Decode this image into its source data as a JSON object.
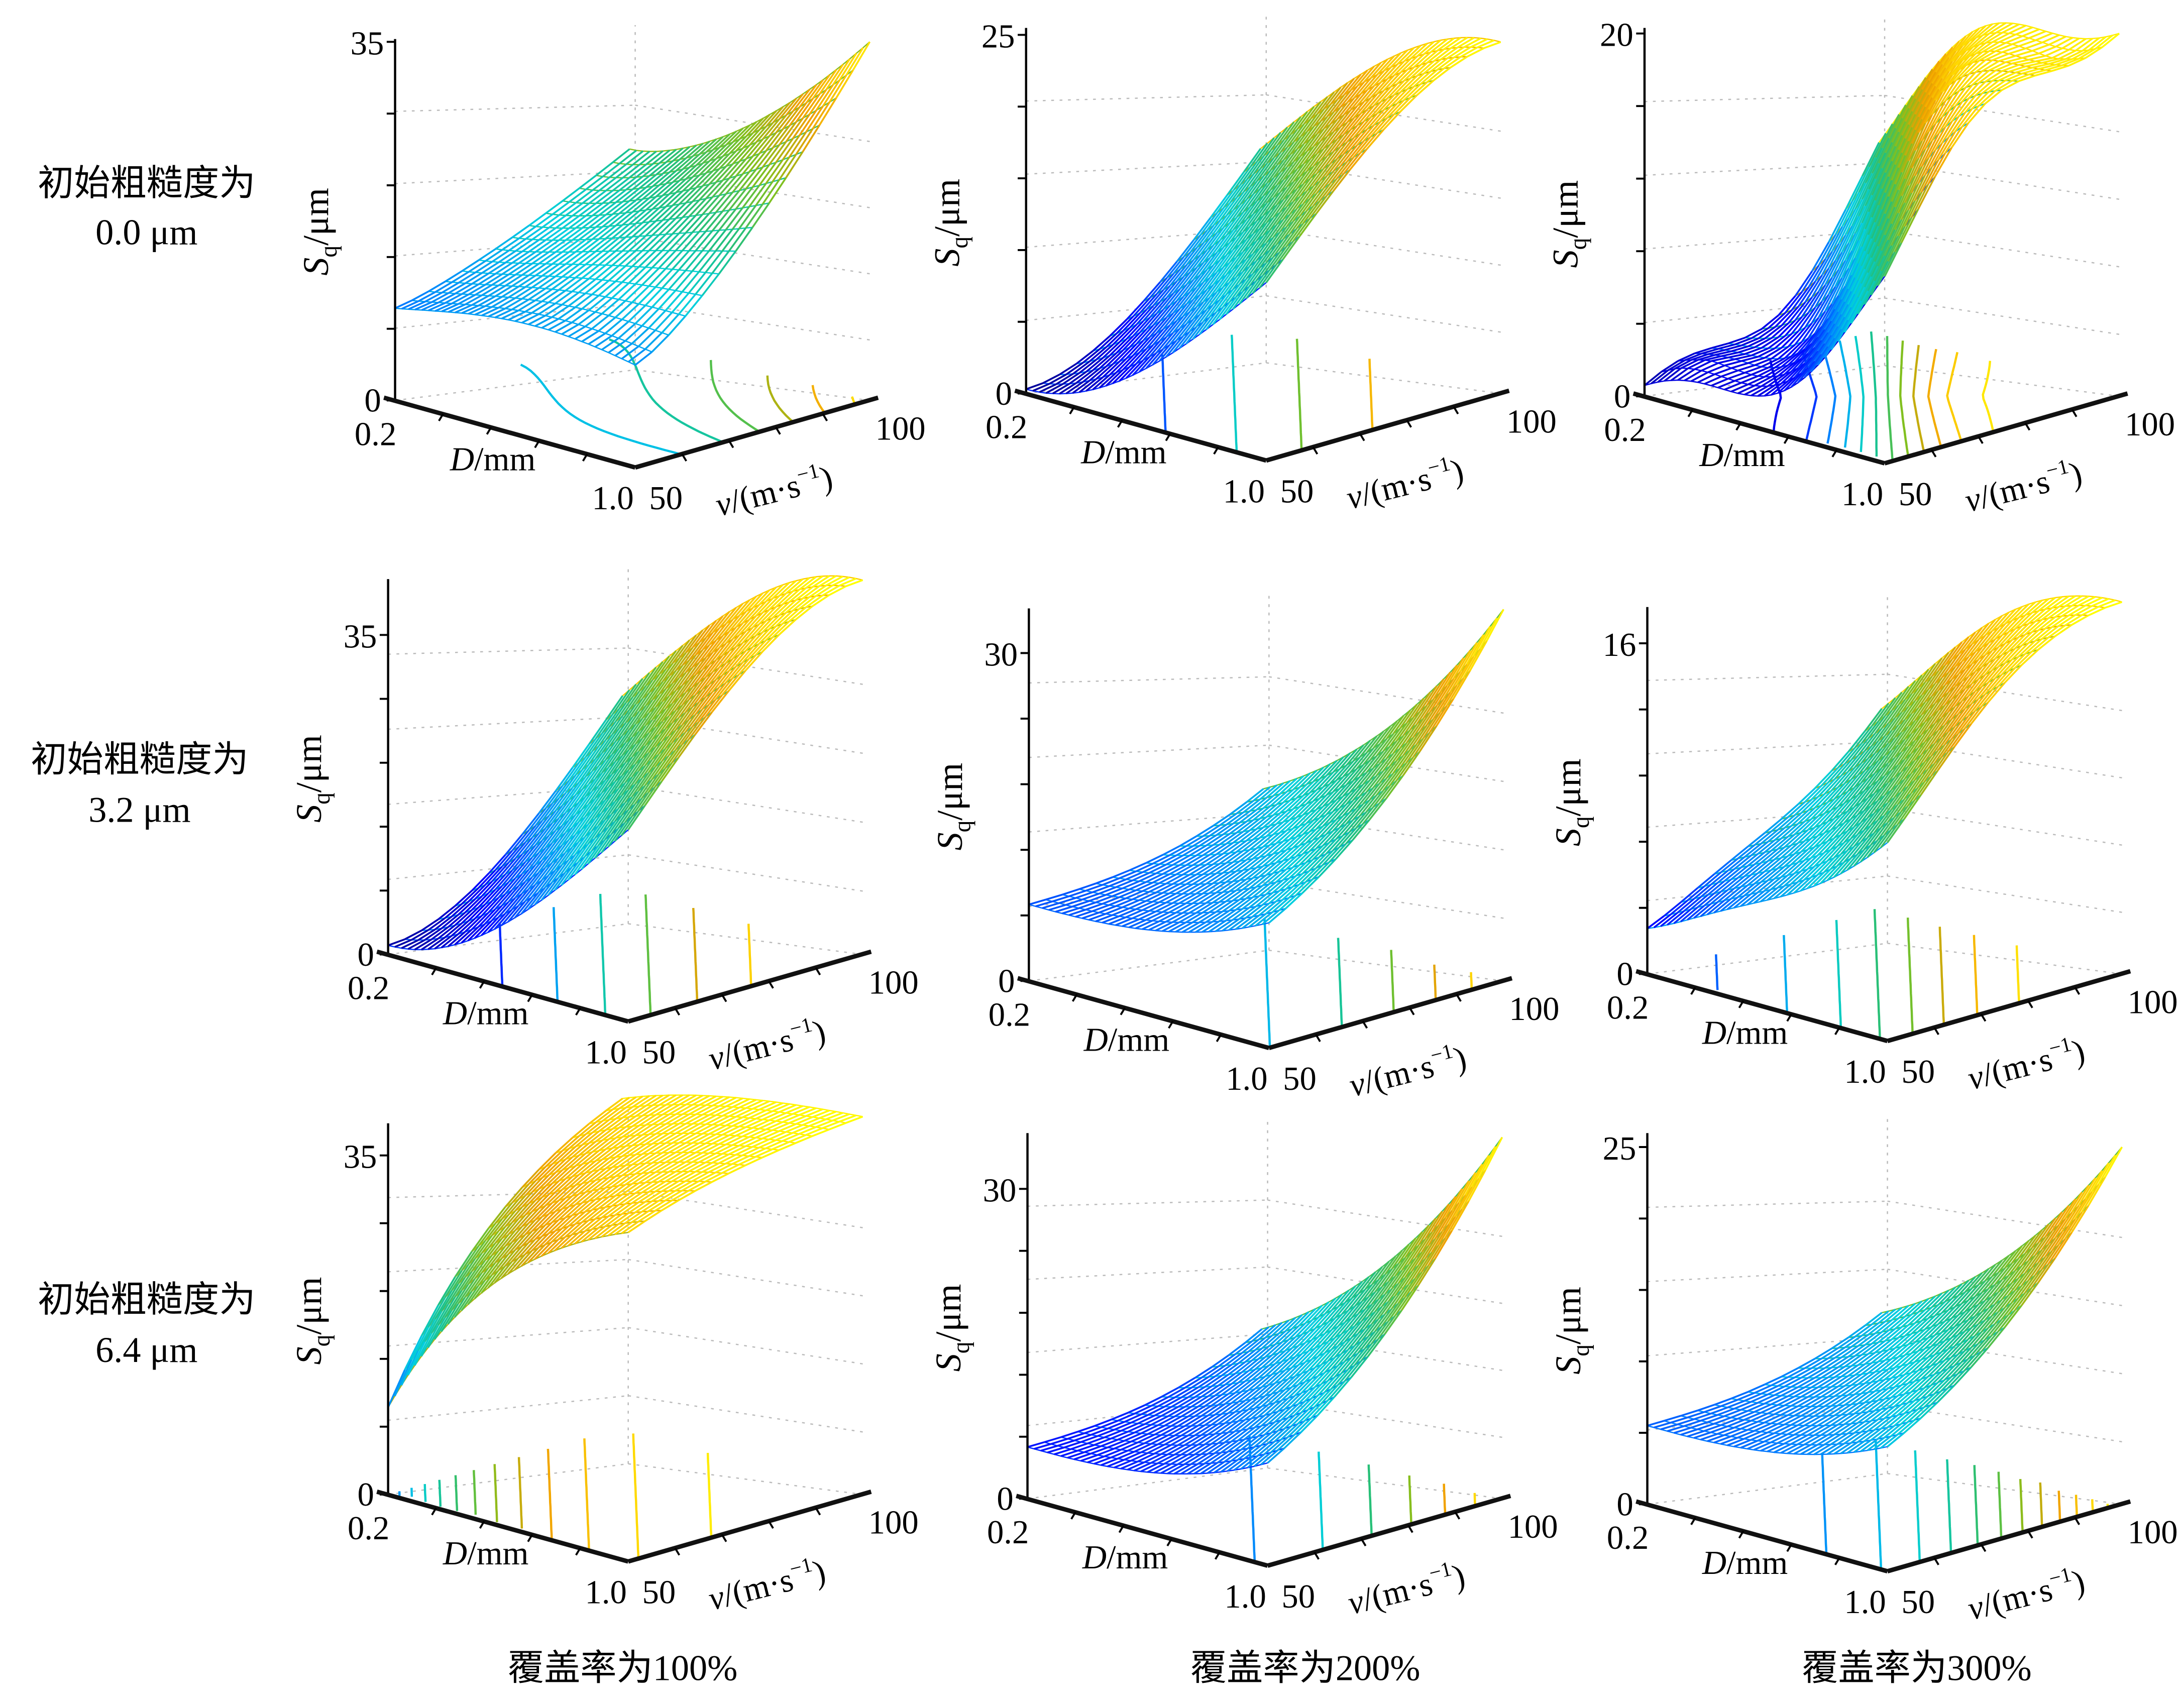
{
  "chart_data": {
    "type": "surface-grid",
    "title": "",
    "row_labels": [
      {
        "line1": "初始粗糙度为",
        "line2": "0.0 μm"
      },
      {
        "line1": "初始粗糙度为",
        "line2": "3.2 μm"
      },
      {
        "line1": "初始粗糙度为",
        "line2": "6.4 μm"
      }
    ],
    "column_labels": [
      "覆盖率为100%",
      "覆盖率为200%",
      "覆盖率为300%"
    ],
    "axes": {
      "zlabel_main": "S",
      "zlabel_sub": "q",
      "zlabel_unit": "/μm",
      "xlabel_italic": "D",
      "xlabel_unit": "/mm",
      "ylabel_italic": "v",
      "ylabel_unit": "/(m·s",
      "ylabel_sup": "−1",
      "ylabel_close": ")",
      "x_ticks": [
        "0.2",
        "1.0"
      ],
      "y_ticks": [
        "50",
        "100"
      ],
      "x_range": [
        0.2,
        1.0
      ],
      "y_range": [
        50,
        100
      ]
    },
    "colormap": [
      "#00008f",
      "#0000ff",
      "#0080ff",
      "#00d0e0",
      "#20c080",
      "#80c020",
      "#f0a000",
      "#ffd700",
      "#ffff00"
    ],
    "panels": [
      {
        "row": 0,
        "col": 0,
        "z_ticks": [
          "0",
          "35"
        ],
        "zlim": [
          0,
          35
        ],
        "zmax_scale": 37,
        "corner_values": {
          "d02_v50": 9,
          "d10_v50": 10,
          "d02_v100": 18,
          "d10_v100": 35
        },
        "shape": "plateau-then-rise",
        "contour_levels": 6
      },
      {
        "row": 0,
        "col": 1,
        "z_ticks": [
          "0",
          "25"
        ],
        "zlim": [
          0,
          25
        ],
        "zmax_scale": 25,
        "corner_values": {
          "d02_v50": 0.3,
          "d10_v50": 7,
          "d02_v100": 10,
          "d10_v100": 24.5
        },
        "shape": "s-rise",
        "contour_levels": 4
      },
      {
        "row": 0,
        "col": 2,
        "z_ticks": [
          "0",
          "20"
        ],
        "zlim": [
          0,
          20
        ],
        "zmax_scale": 20,
        "corner_values": {
          "d02_v50": 0.6,
          "d10_v50": 11,
          "d02_v100": 9,
          "d10_v100": 20
        },
        "shape": "double-s",
        "contour_levels": 12
      },
      {
        "row": 1,
        "col": 0,
        "z_ticks": [
          "0",
          "35"
        ],
        "zlim": [
          0,
          35
        ],
        "zmax_scale": 41,
        "corner_values": {
          "d02_v50": 1,
          "d10_v50": 13,
          "d02_v100": 12,
          "d10_v100": 41
        },
        "shape": "s-rise",
        "contour_levels": 6
      },
      {
        "row": 1,
        "col": 1,
        "z_ticks": [
          "0",
          "30"
        ],
        "zlim": [
          0,
          30
        ],
        "zmax_scale": 34,
        "corner_values": {
          "d02_v50": 7,
          "d10_v50": 12,
          "d02_v100": 13,
          "d10_v100": 34
        },
        "shape": "flat-then-rise",
        "contour_levels": 5
      },
      {
        "row": 1,
        "col": 2,
        "z_ticks": [
          "0",
          "16"
        ],
        "zlim": [
          0,
          16
        ],
        "zmax_scale": 18,
        "corner_values": {
          "d02_v50": 2.2,
          "d10_v50": 6,
          "d02_v100": 6,
          "d10_v100": 18
        },
        "shape": "wavy-rise",
        "contour_levels": 8
      },
      {
        "row": 2,
        "col": 0,
        "z_ticks": [
          "0",
          "35"
        ],
        "zlim": [
          0,
          35
        ],
        "zmax_scale": 39,
        "corner_values": {
          "d02_v50": 9,
          "d10_v50": 29,
          "d02_v100": 30,
          "d10_v100": 39
        },
        "shape": "saturating",
        "contour_levels": 12
      },
      {
        "row": 2,
        "col": 1,
        "z_ticks": [
          "0",
          "30"
        ],
        "zlim": [
          0,
          30
        ],
        "zmax_scale": 35,
        "corner_values": {
          "d02_v50": 5,
          "d10_v50": 9,
          "d02_v100": 10,
          "d10_v100": 35
        },
        "shape": "flat-then-rise",
        "contour_levels": 6
      },
      {
        "row": 2,
        "col": 2,
        "z_ticks": [
          "0",
          "25"
        ],
        "zlim": [
          0,
          25
        ],
        "zmax_scale": 25,
        "corner_values": {
          "d02_v50": 5.5,
          "d10_v50": 6,
          "d02_v100": 6,
          "d10_v100": 25
        },
        "shape": "flat-then-rise",
        "contour_levels": 12
      }
    ]
  }
}
